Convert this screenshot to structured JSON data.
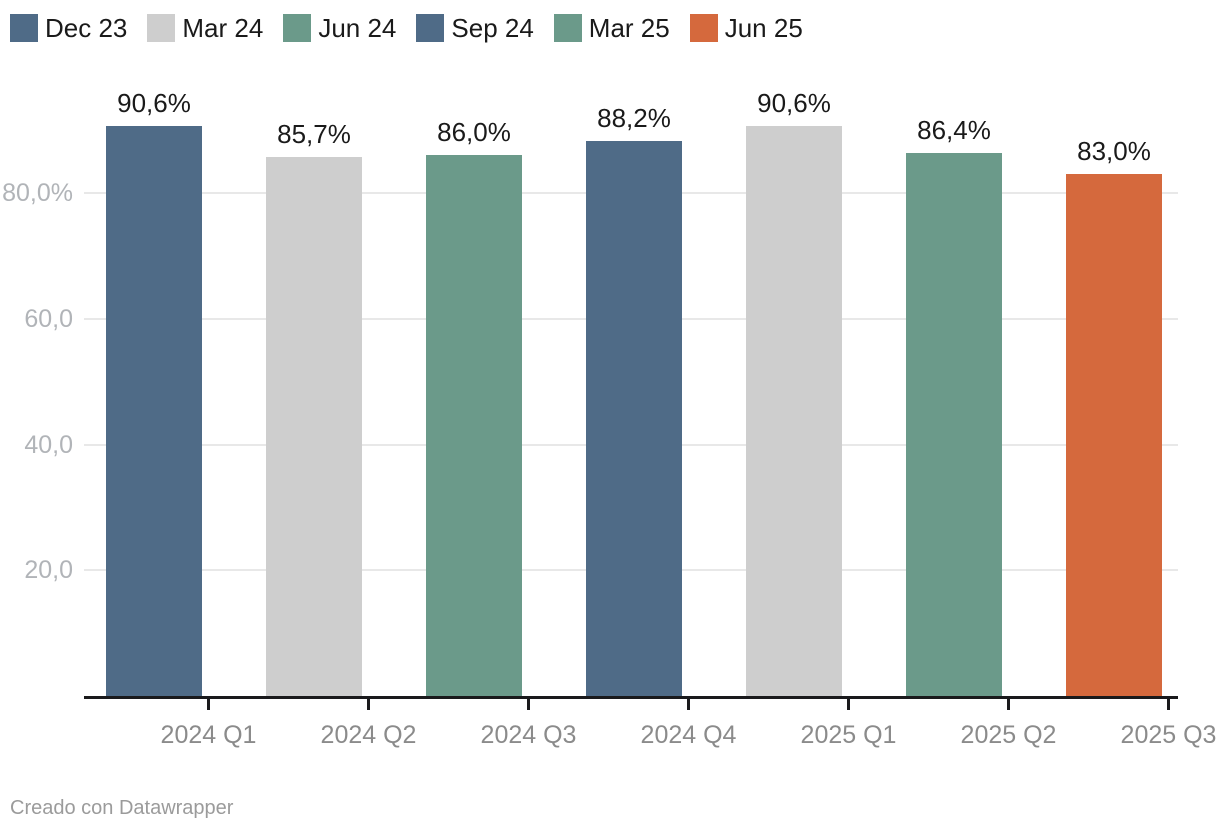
{
  "footer": {
    "credit": "Creado con Datawrapper"
  },
  "chart_data": {
    "type": "bar",
    "title": "",
    "xlabel": "",
    "ylabel": "",
    "categories": [
      "2024 Q1",
      "2024 Q2",
      "2024 Q3",
      "2024 Q4",
      "2025 Q1",
      "2025 Q2",
      "2025 Q3"
    ],
    "values": [
      90.6,
      85.7,
      86.0,
      88.2,
      90.6,
      86.4,
      83.0
    ],
    "value_labels": [
      "90,6%",
      "85,7%",
      "86,0%",
      "88,2%",
      "90,6%",
      "86,4%",
      "83,0%"
    ],
    "bar_colors": [
      "#4f6b87",
      "#cecece",
      "#6b9a8a",
      "#4f6b87",
      "#cecece",
      "#6b9a8a",
      "#d5693d"
    ],
    "unit": "%",
    "decimal_separator": ",",
    "ylim": [
      0,
      96
    ],
    "grid": true,
    "y_axis": {
      "ticks": [
        {
          "value": 20,
          "label": "20,0"
        },
        {
          "value": 40,
          "label": "40,0"
        },
        {
          "value": 60,
          "label": "60,0"
        },
        {
          "value": 80,
          "label": "80,0%"
        }
      ]
    },
    "legend": {
      "position": "top-left",
      "items": [
        {
          "label": "Dec 23",
          "color": "#4f6b87"
        },
        {
          "label": "Mar 24",
          "color": "#cecece"
        },
        {
          "label": "Jun 24",
          "color": "#6b9a8a"
        },
        {
          "label": "Sep 24",
          "color": "#4f6b87"
        },
        {
          "label": "Mar 25",
          "color": "#6b9a8a"
        },
        {
          "label": "Jun 25",
          "color": "#d5693d"
        }
      ]
    },
    "colors": {
      "axis_line": "#1a1a1c",
      "gridline": "#e8e8e8",
      "value_label_text": "#1a1a1a",
      "y_tick_text": "#b1b4b8",
      "x_tick_text": "#8b8b8b",
      "footer_text": "#9b9b9b"
    }
  }
}
